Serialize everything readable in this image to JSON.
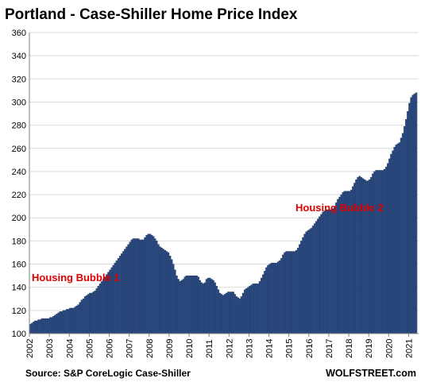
{
  "chart_data": {
    "type": "bar",
    "title": "Portland - Case-Shiller Home Price Index",
    "source": "Source: S&P CoreLogic Case-Shiller",
    "brand": "WOLFSTREET.com",
    "ylim": [
      100,
      360
    ],
    "y_ticks": [
      100,
      120,
      140,
      160,
      180,
      200,
      220,
      240,
      260,
      280,
      300,
      320,
      340,
      360
    ],
    "x_ticks": [
      "2002",
      "2003",
      "2004",
      "2005",
      "2006",
      "2007",
      "2008",
      "2009",
      "2010",
      "2011",
      "2012",
      "2013",
      "2014",
      "2015",
      "2016",
      "2017",
      "2018",
      "2019",
      "2020",
      "2021"
    ],
    "grid": true,
    "legend": "none",
    "bar_color": "#2b4b80",
    "annotations": [
      {
        "text": "Housing Bubble 1",
        "color": "#e00000"
      },
      {
        "text": "Housing Bubble 2",
        "color": "#e00000"
      }
    ],
    "start_month": "2002-01",
    "values": [
      108,
      109,
      110,
      111,
      111,
      112,
      112,
      113,
      113,
      113,
      113,
      113,
      114,
      114,
      115,
      116,
      117,
      118,
      119,
      119,
      120,
      120,
      121,
      121,
      122,
      122,
      122,
      123,
      124,
      125,
      127,
      129,
      130,
      132,
      133,
      134,
      135,
      135,
      136,
      137,
      139,
      141,
      143,
      145,
      147,
      149,
      151,
      153,
      155,
      157,
      159,
      161,
      163,
      165,
      167,
      169,
      171,
      173,
      175,
      177,
      179,
      181,
      182,
      182,
      182,
      182,
      181,
      181,
      181,
      183,
      185,
      186,
      186,
      185,
      184,
      182,
      180,
      177,
      175,
      174,
      173,
      172,
      171,
      170,
      167,
      164,
      160,
      155,
      150,
      147,
      145,
      146,
      147,
      149,
      150,
      150,
      150,
      150,
      150,
      150,
      150,
      149,
      146,
      144,
      143,
      144,
      147,
      148,
      148,
      147,
      146,
      144,
      141,
      138,
      135,
      134,
      133,
      134,
      135,
      136,
      136,
      136,
      136,
      134,
      132,
      131,
      130,
      132,
      135,
      138,
      139,
      140,
      141,
      142,
      143,
      143,
      143,
      143,
      145,
      148,
      151,
      154,
      157,
      159,
      160,
      161,
      161,
      161,
      161,
      162,
      163,
      165,
      168,
      170,
      171,
      171,
      171,
      171,
      171,
      171,
      172,
      174,
      177,
      180,
      183,
      186,
      188,
      189,
      190,
      191,
      193,
      195,
      197,
      199,
      201,
      203,
      205,
      206,
      207,
      207,
      207,
      207,
      208,
      210,
      213,
      216,
      218,
      220,
      222,
      223,
      223,
      223,
      223,
      224,
      227,
      230,
      233,
      235,
      236,
      235,
      234,
      233,
      232,
      232,
      233,
      235,
      238,
      240,
      241,
      241,
      241,
      241,
      241,
      242,
      244,
      247,
      251,
      255,
      258,
      261,
      263,
      264,
      265,
      269,
      273,
      279,
      285,
      292,
      299,
      304,
      306,
      307,
      308
    ]
  }
}
